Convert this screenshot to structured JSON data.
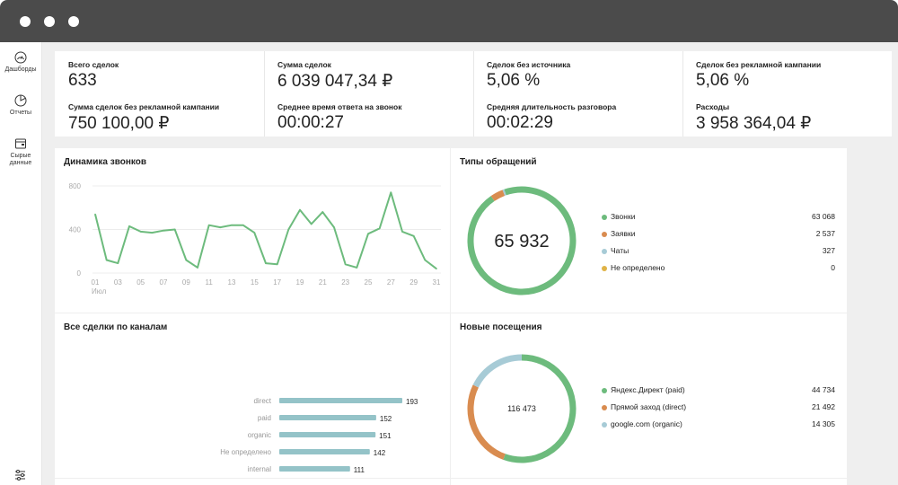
{
  "sidebar": {
    "items": [
      {
        "label_lines": [
          "Дашборды"
        ],
        "icon": "dashboard-icon"
      },
      {
        "label_lines": [
          "Отчеты"
        ],
        "icon": "report-icon"
      },
      {
        "label_lines": [
          "Сырые",
          "данные"
        ],
        "icon": "raw-data-icon"
      }
    ],
    "bottom_icon": "settings-sliders-icon"
  },
  "kpis": [
    {
      "label": "Всего сделок",
      "value": "633"
    },
    {
      "label": "Сумма сделок",
      "value": "6 039 047,34 ₽"
    },
    {
      "label": "Сделок без источника",
      "value": "5,06 %"
    },
    {
      "label": "Сделок без рекламной кампании",
      "value": "5,06 %"
    },
    {
      "label": "Сумма сделок без рекламной кампании",
      "value": "750 100,00 ₽"
    },
    {
      "label": "Среднее время ответа на звонок",
      "value": "00:00:27"
    },
    {
      "label": "Средняя длительность разговора",
      "value": "00:02:29"
    },
    {
      "label": "Расходы",
      "value": "3 958 364,04 ₽"
    }
  ],
  "cards": {
    "calls": {
      "title": "Динамика звонков"
    },
    "types": {
      "title": "Типы обращений"
    },
    "channels": {
      "title": "Все сделки по каналам"
    },
    "visits": {
      "title": "Новые посещения"
    }
  },
  "colors": {
    "green": "#6dbb7d",
    "orange": "#d98c50",
    "light_blue": "#a7cbd6",
    "yellow": "#e0b347",
    "bar": "#94c3c8"
  },
  "chart_data": [
    {
      "type": "line",
      "title": "Динамика звонков",
      "x_tick_labels": [
        "01",
        "03",
        "05",
        "07",
        "09",
        "11",
        "13",
        "15",
        "17",
        "19",
        "21",
        "23",
        "25",
        "27",
        "29",
        "31"
      ],
      "x_sub_label": "Июл",
      "y_ticks": [
        0,
        400,
        800
      ],
      "ylim": [
        0,
        800
      ],
      "x": [
        1,
        2,
        3,
        4,
        5,
        6,
        7,
        8,
        9,
        10,
        11,
        12,
        13,
        14,
        15,
        16,
        17,
        18,
        19,
        20,
        21,
        22,
        23,
        24,
        25,
        26,
        27,
        28,
        29,
        30,
        31
      ],
      "values": [
        540,
        120,
        90,
        430,
        380,
        370,
        390,
        400,
        120,
        50,
        440,
        420,
        440,
        440,
        370,
        90,
        80,
        400,
        580,
        450,
        560,
        420,
        80,
        50,
        360,
        410,
        740,
        380,
        340,
        120,
        40
      ],
      "grid": true,
      "color": "#6dbb7d"
    },
    {
      "type": "pie",
      "title": "Типы обращений",
      "center_label": "65 932",
      "slices": [
        {
          "name": "Звонки",
          "value": 63068,
          "display": "63 068",
          "color": "#6dbb7d"
        },
        {
          "name": "Заявки",
          "value": 2537,
          "display": "2 537",
          "color": "#d98c50"
        },
        {
          "name": "Чаты",
          "value": 327,
          "display": "327",
          "color": "#a7cbd6"
        },
        {
          "name": "Не определено",
          "value": 0,
          "display": "0",
          "color": "#e0b347"
        }
      ]
    },
    {
      "type": "bar",
      "title": "Все сделки по каналам",
      "orientation": "horizontal",
      "categories": [
        "direct",
        "paid",
        "organic",
        "Не определено",
        "internal"
      ],
      "values": [
        193,
        152,
        151,
        142,
        111
      ],
      "color": "#94c3c8"
    },
    {
      "type": "pie",
      "title": "Новые посещения",
      "center_label": "116 473",
      "slices": [
        {
          "name": "Яндекс.Директ (paid)",
          "value": 44734,
          "display": "44 734",
          "color": "#6dbb7d"
        },
        {
          "name": "Прямой заход (direct)",
          "value": 21492,
          "display": "21 492",
          "color": "#d98c50"
        },
        {
          "name": "google.com (organic)",
          "value": 14305,
          "display": "14 305",
          "color": "#a7cbd6"
        }
      ]
    }
  ]
}
